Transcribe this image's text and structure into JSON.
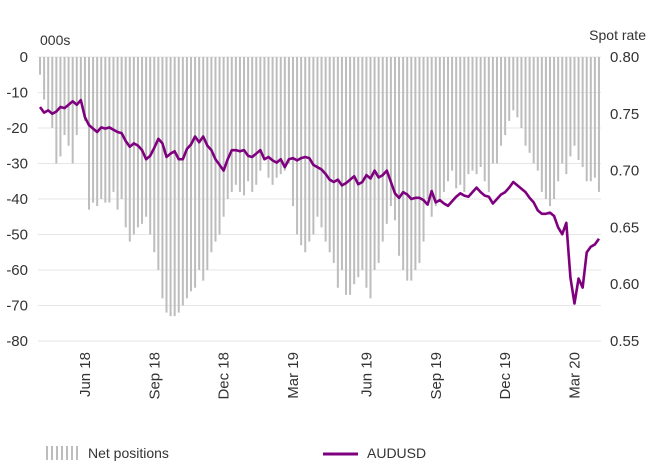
{
  "colors": {
    "bars": "#bdbdbd",
    "line": "#7f007f",
    "grid": "#e6e6e6",
    "text": "#333333"
  },
  "chart_data": {
    "type": "bar+line",
    "title": "",
    "left_unit_label": "000s",
    "right_unit_label": "Spot rate",
    "left_axis": {
      "ylim": [
        0,
        -80
      ],
      "ticks": [
        0,
        -10,
        -20,
        -30,
        -40,
        -50,
        -60,
        -70,
        -80
      ],
      "labels": [
        "0",
        "-10",
        "-20",
        "-30",
        "-40",
        "-50",
        "-60",
        "-70",
        "-80"
      ]
    },
    "right_axis": {
      "ylim": [
        0.8,
        0.55
      ],
      "ticks": [
        0.8,
        0.75,
        0.7,
        0.65,
        0.6,
        0.55
      ],
      "labels": [
        "0.80",
        "0.75",
        "0.70",
        "0.65",
        "0.60",
        "0.55"
      ]
    },
    "x_labels": [
      {
        "label": "Jun 18",
        "index": 11
      },
      {
        "label": "Sep 18",
        "index": 28
      },
      {
        "label": "Dec 18",
        "index": 45
      },
      {
        "label": "Mar 19",
        "index": 62
      },
      {
        "label": "Jun 19",
        "index": 80
      },
      {
        "label": "Sep 19",
        "index": 97
      },
      {
        "label": "Dec 19",
        "index": 114
      },
      {
        "label": "Mar 20",
        "index": 131
      }
    ],
    "grid": true,
    "legend": {
      "position": "bottom",
      "items": [
        "Net positions",
        "AUDUSD"
      ]
    },
    "series": [
      {
        "name": "Net positions",
        "type": "bar",
        "axis": "left",
        "values": [
          -5,
          -12,
          -15,
          -20,
          -30,
          -28,
          -22,
          -25,
          -30,
          -22,
          -13,
          -18,
          -43,
          -41,
          -42,
          -40,
          -41,
          -41,
          -38,
          -43,
          -40,
          -48,
          -52,
          -50,
          -48,
          -47,
          -45,
          -50,
          -55,
          -60,
          -68,
          -72,
          -73,
          -73,
          -72,
          -70,
          -68,
          -66,
          -65,
          -60,
          -63,
          -60,
          -55,
          -52,
          -50,
          -45,
          -40,
          -38,
          -36,
          -38,
          -39,
          -35,
          -38,
          -36,
          -32,
          -28,
          -34,
          -36,
          -34,
          -33,
          -32,
          -30,
          -42,
          -50,
          -53,
          -55,
          -52,
          -50,
          -45,
          -48,
          -52,
          -55,
          -58,
          -65,
          -60,
          -67,
          -67,
          -64,
          -62,
          -60,
          -65,
          -68,
          -60,
          -58,
          -52,
          -47,
          -42,
          -46,
          -56,
          -60,
          -63,
          -63,
          -60,
          -58,
          -52,
          -40,
          -45,
          -42,
          -40,
          -38,
          -35,
          -32,
          -37,
          -36,
          -38,
          -33,
          -32,
          -33,
          -31,
          -35,
          -38,
          -30,
          -30,
          -25,
          -22,
          -18,
          -15,
          -17,
          -20,
          -25,
          -27,
          -30,
          -32,
          -38,
          -40,
          -42,
          -40,
          -35,
          -30,
          -33,
          -28,
          -25,
          -29,
          -31,
          -35,
          -35,
          -34,
          -38
        ]
      },
      {
        "name": "AUDUSD",
        "type": "line",
        "axis": "right",
        "values": [
          0.756,
          0.751,
          0.753,
          0.75,
          0.752,
          0.756,
          0.755,
          0.758,
          0.761,
          0.758,
          0.762,
          0.747,
          0.74,
          0.737,
          0.734,
          0.738,
          0.737,
          0.738,
          0.736,
          0.734,
          0.733,
          0.726,
          0.721,
          0.724,
          0.722,
          0.718,
          0.71,
          0.713,
          0.72,
          0.728,
          0.724,
          0.712,
          0.715,
          0.717,
          0.71,
          0.71,
          0.719,
          0.723,
          0.73,
          0.725,
          0.73,
          0.722,
          0.718,
          0.71,
          0.705,
          0.7,
          0.71,
          0.718,
          0.718,
          0.717,
          0.718,
          0.713,
          0.712,
          0.715,
          0.718,
          0.71,
          0.712,
          0.709,
          0.707,
          0.71,
          0.703,
          0.71,
          0.711,
          0.709,
          0.711,
          0.712,
          0.711,
          0.705,
          0.703,
          0.701,
          0.697,
          0.692,
          0.69,
          0.692,
          0.687,
          0.689,
          0.692,
          0.695,
          0.688,
          0.69,
          0.696,
          0.693,
          0.7,
          0.694,
          0.696,
          0.7,
          0.69,
          0.68,
          0.676,
          0.681,
          0.679,
          0.675,
          0.676,
          0.676,
          0.674,
          0.67,
          0.682,
          0.672,
          0.674,
          0.671,
          0.669,
          0.673,
          0.677,
          0.68,
          0.678,
          0.677,
          0.681,
          0.685,
          0.681,
          0.678,
          0.677,
          0.671,
          0.675,
          0.679,
          0.681,
          0.685,
          0.69,
          0.687,
          0.684,
          0.681,
          0.676,
          0.672,
          0.665,
          0.662,
          0.662,
          0.663,
          0.66,
          0.65,
          0.644,
          0.654,
          0.606,
          0.583,
          0.605,
          0.597,
          0.628,
          0.633,
          0.635,
          0.64
        ]
      }
    ]
  }
}
